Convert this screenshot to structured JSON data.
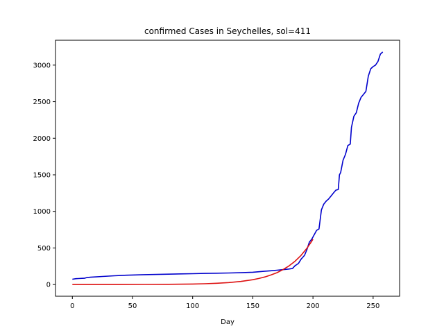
{
  "chart_data": {
    "type": "line",
    "title": "confirmed Cases in Seychelles, sol=411",
    "xlabel": "Day",
    "ylabel": "",
    "xlim": [
      -14,
      272
    ],
    "ylim": [
      -160,
      3340
    ],
    "xticks": [
      0,
      50,
      100,
      150,
      200,
      250
    ],
    "yticks": [
      0,
      500,
      1000,
      1500,
      2000,
      2500,
      3000
    ],
    "grid": false,
    "series": [
      {
        "color": "#0000cc",
        "x": [
          0,
          3,
          5,
          8,
          10,
          12,
          15,
          20,
          25,
          30,
          35,
          40,
          45,
          50,
          60,
          70,
          80,
          90,
          100,
          110,
          120,
          130,
          140,
          150,
          155,
          160,
          165,
          170,
          175,
          180,
          183,
          185,
          188,
          190,
          193,
          195,
          197,
          199,
          201,
          203,
          205,
          207,
          209,
          211,
          213,
          215,
          217,
          219,
          221,
          222,
          223,
          225,
          227,
          229,
          231,
          232,
          234,
          236,
          238,
          240,
          242,
          244,
          246,
          248,
          250,
          252,
          254,
          256,
          258
        ],
        "y": [
          72,
          80,
          82,
          85,
          86,
          95,
          100,
          105,
          110,
          115,
          120,
          124,
          127,
          130,
          135,
          138,
          142,
          145,
          148,
          152,
          155,
          158,
          162,
          168,
          175,
          182,
          188,
          196,
          203,
          212,
          220,
          255,
          290,
          345,
          400,
          480,
          580,
          620,
          680,
          740,
          760,
          1020,
          1100,
          1140,
          1170,
          1210,
          1250,
          1290,
          1300,
          1500,
          1530,
          1700,
          1780,
          1900,
          1920,
          2150,
          2300,
          2350,
          2480,
          2560,
          2600,
          2640,
          2850,
          2950,
          2980,
          3000,
          3050,
          3150,
          3180
        ]
      },
      {
        "color": "#dd1111",
        "x": [
          0,
          20,
          40,
          60,
          80,
          100,
          110,
          120,
          130,
          140,
          150,
          155,
          160,
          165,
          170,
          175,
          180,
          185,
          190,
          195,
          198,
          200
        ],
        "y": [
          0,
          0,
          0,
          1,
          3,
          7,
          11,
          17,
          27,
          42,
          66,
          83,
          104,
          130,
          162,
          203,
          254,
          317,
          397,
          497,
          568,
          620
        ]
      }
    ]
  }
}
